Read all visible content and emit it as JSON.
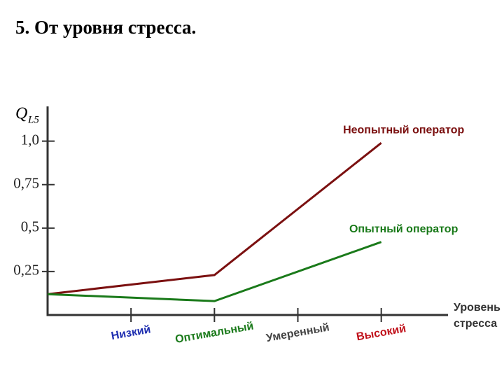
{
  "title": "5. От уровня стресса.",
  "chart_data": {
    "type": "line",
    "y_label": "Q",
    "y_label_sub": "L5",
    "x_label_lines": [
      "Уровень",
      "стресса"
    ],
    "x": [
      0,
      2,
      4
    ],
    "xlim": [
      0,
      4.8
    ],
    "xticks": [
      {
        "value": 1,
        "label": "Низкий"
      },
      {
        "value": 2,
        "label": "Оптимальный"
      },
      {
        "value": 3,
        "label": "Умеренный"
      },
      {
        "value": 4,
        "label": "Высокий"
      }
    ],
    "xtick_colors": [
      "#1f2fb0",
      "#1a7a1a",
      "#444444",
      "#c0101a"
    ],
    "ylim": [
      0,
      1.2
    ],
    "yticks": [
      {
        "value": 0.25,
        "label": "0,25"
      },
      {
        "value": 0.5,
        "label": "0,5"
      },
      {
        "value": 0.75,
        "label": "0,75"
      },
      {
        "value": 1.0,
        "label": "1,0"
      }
    ],
    "series": [
      {
        "name": "Неопытный оператор",
        "color": "#7b1010",
        "values": [
          0.12,
          0.23,
          0.99
        ]
      },
      {
        "name": "Опытный оператор",
        "color": "#1a7a1a",
        "values": [
          0.12,
          0.08,
          0.42
        ]
      }
    ]
  }
}
